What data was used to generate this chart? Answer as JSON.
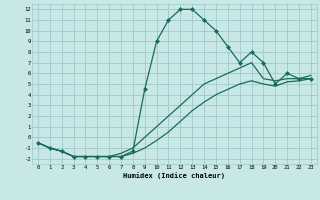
{
  "xlabel": "Humidex (Indice chaleur)",
  "background_color": "#c8e8e8",
  "grid_color": "#a0c8c8",
  "line_color": "#1a6b5a",
  "xlim": [
    -0.5,
    23.5
  ],
  "ylim": [
    -2.5,
    12.5
  ],
  "xticks": [
    0,
    1,
    2,
    3,
    4,
    5,
    6,
    7,
    8,
    9,
    10,
    11,
    12,
    13,
    14,
    15,
    16,
    17,
    18,
    19,
    20,
    21,
    22,
    23
  ],
  "yticks": [
    -2,
    -1,
    0,
    1,
    2,
    3,
    4,
    5,
    6,
    7,
    8,
    9,
    10,
    11,
    12
  ],
  "line1_x": [
    0,
    1,
    2,
    3,
    4,
    5,
    6,
    7,
    8,
    9,
    10,
    11,
    12,
    13,
    14,
    15,
    16,
    17,
    18,
    19,
    20,
    21,
    22,
    23
  ],
  "line1_y": [
    -0.5,
    -1.0,
    -1.3,
    -1.8,
    -1.8,
    -1.8,
    -1.8,
    -1.8,
    -1.5,
    -1.0,
    -0.3,
    0.5,
    1.5,
    2.5,
    3.3,
    4.0,
    4.5,
    5.0,
    5.3,
    5.0,
    4.8,
    5.2,
    5.3,
    5.5
  ],
  "line2_x": [
    0,
    1,
    2,
    3,
    4,
    5,
    6,
    7,
    8,
    9,
    10,
    11,
    12,
    13,
    14,
    15,
    16,
    17,
    18,
    19,
    20,
    21,
    22,
    23
  ],
  "line2_y": [
    -0.5,
    -1.0,
    -1.3,
    -1.8,
    -1.8,
    -1.8,
    -1.8,
    -1.5,
    -1.0,
    0.0,
    1.0,
    2.0,
    3.0,
    4.0,
    5.0,
    5.5,
    6.0,
    6.5,
    7.0,
    5.5,
    5.3,
    5.5,
    5.5,
    5.8
  ],
  "line3_x": [
    0,
    1,
    2,
    3,
    4,
    5,
    6,
    7,
    8,
    9,
    10,
    11,
    12,
    13,
    14,
    15,
    16,
    17,
    18,
    19,
    20,
    21,
    22,
    23
  ],
  "line3_y": [
    -0.5,
    -1.0,
    -1.3,
    -1.8,
    -1.8,
    -1.8,
    -1.8,
    -1.8,
    -1.3,
    4.5,
    9.0,
    11.0,
    12.0,
    12.0,
    11.0,
    10.0,
    8.5,
    7.0,
    8.0,
    7.0,
    5.0,
    6.0,
    5.5,
    5.5
  ]
}
